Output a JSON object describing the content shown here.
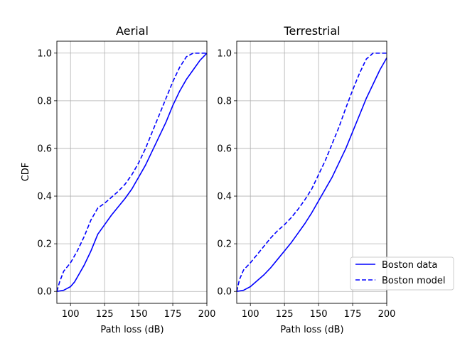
{
  "chart_data": [
    {
      "type": "line",
      "title": "Aerial",
      "xlabel": "Path loss (dB)",
      "ylabel": "CDF",
      "xlim": [
        90,
        200
      ],
      "ylim": [
        -0.05,
        1.05
      ],
      "xticks": [
        100,
        125,
        150,
        175,
        200
      ],
      "yticks": [
        0.0,
        0.2,
        0.4,
        0.6,
        0.8,
        1.0
      ],
      "grid": true,
      "series": [
        {
          "name": "Boston data",
          "style": "solid",
          "color": "#0000ff",
          "x": [
            90,
            95,
            100,
            103,
            106,
            110,
            115,
            120,
            125,
            130,
            135,
            140,
            145,
            150,
            155,
            160,
            165,
            170,
            175,
            180,
            185,
            190,
            195,
            200
          ],
          "y": [
            0.0,
            0.005,
            0.02,
            0.04,
            0.07,
            0.11,
            0.17,
            0.24,
            0.28,
            0.32,
            0.355,
            0.39,
            0.43,
            0.48,
            0.53,
            0.59,
            0.65,
            0.71,
            0.78,
            0.84,
            0.89,
            0.93,
            0.97,
            1.0
          ]
        },
        {
          "name": "Boston model",
          "style": "dashed",
          "color": "#0000ff",
          "x": [
            90,
            92,
            95,
            100,
            105,
            110,
            115,
            120,
            125,
            130,
            135,
            140,
            145,
            150,
            155,
            160,
            165,
            170,
            175,
            180,
            185,
            190,
            195,
            200
          ],
          "y": [
            0.0,
            0.04,
            0.085,
            0.12,
            0.17,
            0.23,
            0.3,
            0.35,
            0.37,
            0.395,
            0.42,
            0.45,
            0.49,
            0.54,
            0.6,
            0.67,
            0.74,
            0.81,
            0.88,
            0.94,
            0.985,
            1.0,
            1.0,
            1.0
          ]
        }
      ]
    },
    {
      "type": "line",
      "title": "Terrestrial",
      "xlabel": "Path loss (dB)",
      "ylabel": "",
      "xlim": [
        90,
        200
      ],
      "ylim": [
        -0.05,
        1.05
      ],
      "xticks": [
        100,
        125,
        150,
        175,
        200
      ],
      "yticks": [
        0.0,
        0.2,
        0.4,
        0.6,
        0.8,
        1.0
      ],
      "grid": true,
      "series": [
        {
          "name": "Boston data",
          "style": "solid",
          "color": "#0000ff",
          "x": [
            90,
            95,
            100,
            105,
            110,
            115,
            120,
            125,
            130,
            135,
            140,
            145,
            150,
            155,
            160,
            165,
            170,
            175,
            180,
            185,
            190,
            195,
            200
          ],
          "y": [
            0.0,
            0.005,
            0.02,
            0.045,
            0.07,
            0.1,
            0.135,
            0.17,
            0.205,
            0.245,
            0.285,
            0.33,
            0.38,
            0.43,
            0.48,
            0.54,
            0.6,
            0.67,
            0.74,
            0.81,
            0.87,
            0.93,
            0.98
          ]
        },
        {
          "name": "Boston model",
          "style": "dashed",
          "color": "#0000ff",
          "x": [
            90,
            92,
            95,
            100,
            105,
            110,
            115,
            120,
            125,
            130,
            135,
            140,
            145,
            150,
            155,
            160,
            165,
            170,
            175,
            180,
            185,
            190,
            195,
            200
          ],
          "y": [
            0.0,
            0.05,
            0.09,
            0.12,
            0.155,
            0.19,
            0.225,
            0.255,
            0.28,
            0.31,
            0.345,
            0.385,
            0.43,
            0.49,
            0.55,
            0.62,
            0.69,
            0.77,
            0.845,
            0.915,
            0.975,
            1.0,
            1.0,
            1.0
          ]
        }
      ]
    }
  ],
  "legend": {
    "placement": "lower-right",
    "entries": [
      {
        "label": "Boston data",
        "style": "solid"
      },
      {
        "label": "Boston model",
        "style": "dashed"
      }
    ]
  }
}
